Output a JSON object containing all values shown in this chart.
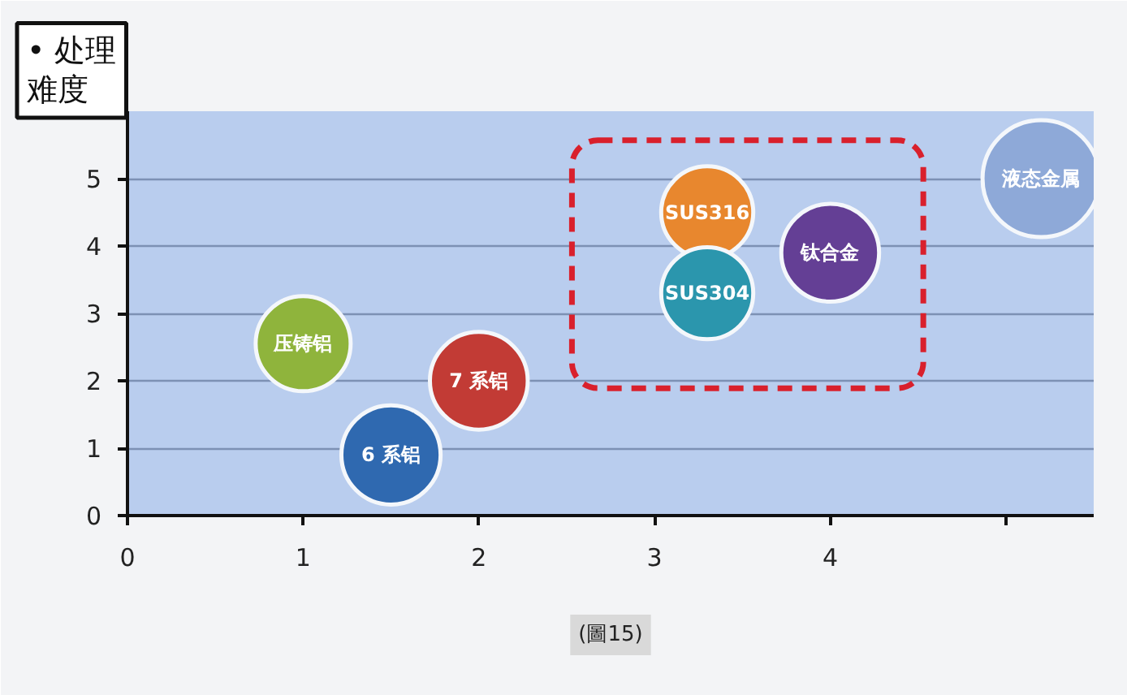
{
  "chart_data": {
    "type": "bubble",
    "ylabel": "• 处理难度",
    "annotations": [
      "(圖15)"
    ],
    "xlim": [
      0,
      5.5
    ],
    "ylim": [
      0,
      6
    ],
    "xticks": [
      0,
      1,
      2,
      3,
      4,
      {
        "value": 5,
        "label": null
      }
    ],
    "yticks": [
      0,
      1,
      2,
      3,
      4,
      5
    ],
    "grid": "y",
    "marker": "circle",
    "series": [
      {
        "name": "压铸铝",
        "color": "#8fb43c",
        "x": [
          1
        ],
        "values": [
          2.55
        ],
        "sizes": [
          0.66
        ]
      },
      {
        "name": "6 系铝",
        "color": "#2f69b0",
        "x": [
          1.5
        ],
        "values": [
          0.9
        ],
        "sizes": [
          0.72
        ]
      },
      {
        "name": "7 系铝",
        "color": "#c23b35",
        "x": [
          2
        ],
        "values": [
          2
        ],
        "sizes": [
          0.7
        ]
      },
      {
        "name": "SUS316",
        "color": "#e8872e",
        "x": [
          3.3
        ],
        "values": [
          4.5
        ],
        "sizes": [
          0.62
        ]
      },
      {
        "name": "SUS304",
        "color": "#2b96ad",
        "x": [
          3.3
        ],
        "values": [
          3.3
        ],
        "sizes": [
          0.62
        ]
      },
      {
        "name": "钛合金",
        "color": "#643f95",
        "x": [
          4
        ],
        "values": [
          3.9
        ],
        "sizes": [
          0.7
        ]
      },
      {
        "name": "液态金属",
        "color": "#8ea9d8",
        "x": [
          5.2
        ],
        "values": [
          5
        ],
        "sizes": [
          1
        ]
      }
    ]
  }
}
